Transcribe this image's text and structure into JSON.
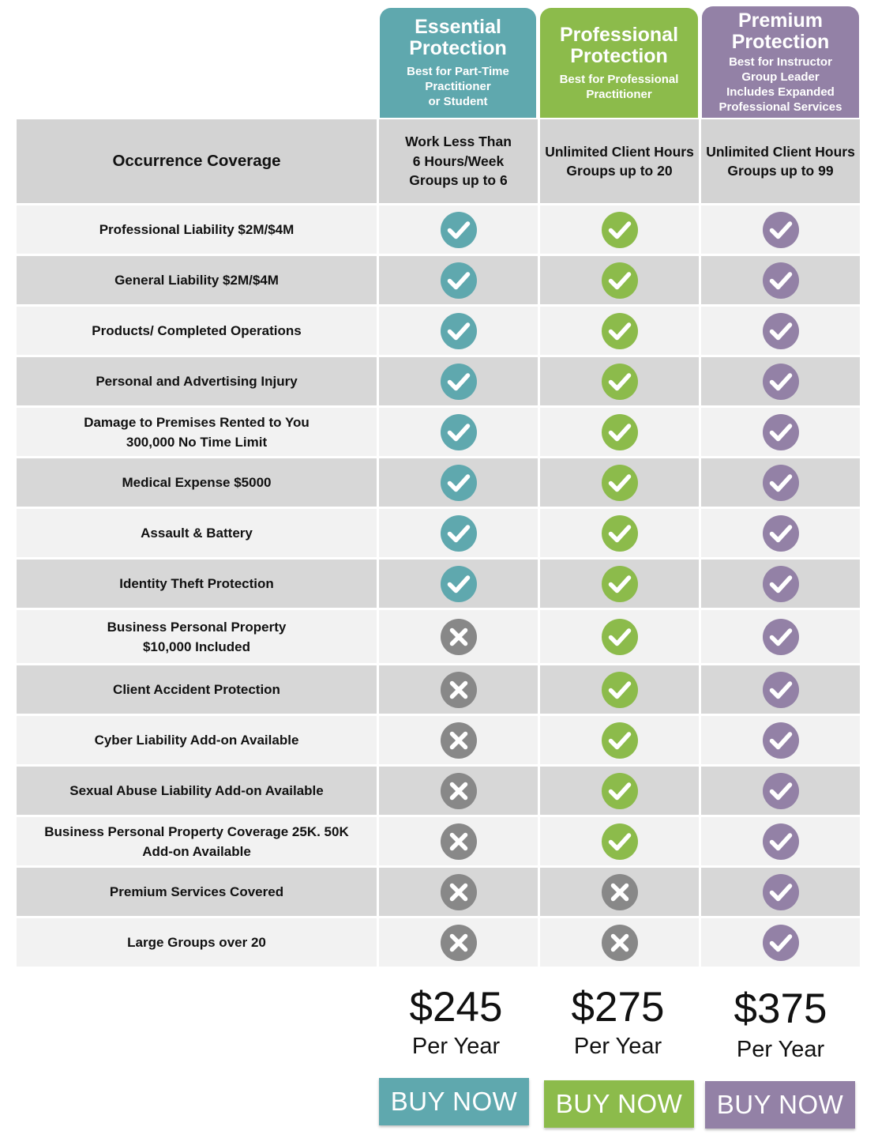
{
  "colors": {
    "essential": "#5fa8ae",
    "professional": "#8cbb4b",
    "premium": "#9381a6",
    "cross": "#888888"
  },
  "plans": [
    {
      "key": "essential",
      "title": [
        "Essential",
        "Protection"
      ],
      "subtitle": [
        "Best for Part-Time",
        "Practitioner",
        "or Student"
      ],
      "header_cell": [
        "Work Less Than",
        "6 Hours/Week",
        "Groups up to 6"
      ],
      "price": "$245",
      "period": "Per Year",
      "button": "BUY NOW"
    },
    {
      "key": "professional",
      "title": [
        "Professional",
        "Protection"
      ],
      "subtitle": [
        "Best for Professional",
        "Practitioner"
      ],
      "header_cell": [
        "Unlimited Client Hours",
        "Groups up to 20"
      ],
      "price": "$275",
      "period": "Per Year",
      "button": "BUY NOW"
    },
    {
      "key": "premium",
      "title": [
        "Premium",
        "Protection"
      ],
      "subtitle": [
        "Best for Instructor",
        "Group Leader",
        "Includes Expanded",
        "Professional  Services"
      ],
      "header_cell": [
        "Unlimited Client Hours",
        "Groups up to 99"
      ],
      "price": "$375",
      "period": "Per Year",
      "button": "BUY NOW"
    }
  ],
  "table": {
    "header_label": "Occurrence Coverage",
    "rows": [
      {
        "label": [
          "Professional Liability $2M/$4M"
        ],
        "included": [
          true,
          true,
          true
        ]
      },
      {
        "label": [
          "General Liability $2M/$4M"
        ],
        "included": [
          true,
          true,
          true
        ]
      },
      {
        "label": [
          "Products/ Completed Operations"
        ],
        "included": [
          true,
          true,
          true
        ]
      },
      {
        "label": [
          "Personal and Advertising Injury"
        ],
        "included": [
          true,
          true,
          true
        ]
      },
      {
        "label": [
          "Damage to Premises Rented to You",
          "300,000 No Time Limit"
        ],
        "included": [
          true,
          true,
          true
        ]
      },
      {
        "label": [
          "Medical Expense $5000"
        ],
        "included": [
          true,
          true,
          true
        ]
      },
      {
        "label": [
          "Assault & Battery"
        ],
        "included": [
          true,
          true,
          true
        ]
      },
      {
        "label": [
          "Identity Theft Protection"
        ],
        "included": [
          true,
          true,
          true
        ]
      },
      {
        "label": [
          "Business Personal Property",
          "$10,000 Included"
        ],
        "included": [
          false,
          true,
          true
        ]
      },
      {
        "label": [
          "Client Accident Protection"
        ],
        "included": [
          false,
          true,
          true
        ]
      },
      {
        "label": [
          "Cyber Liability Add-on Available"
        ],
        "included": [
          false,
          true,
          true
        ]
      },
      {
        "label": [
          "Sexual Abuse Liability Add-on Available"
        ],
        "included": [
          false,
          true,
          true
        ]
      },
      {
        "label": [
          "Business Personal Property Coverage 25K. 50K",
          "Add-on Available"
        ],
        "included": [
          false,
          true,
          true
        ]
      },
      {
        "label": [
          "Premium Services Covered"
        ],
        "included": [
          false,
          false,
          true
        ]
      },
      {
        "label": [
          "Large Groups over 20"
        ],
        "included": [
          false,
          false,
          true
        ]
      }
    ]
  }
}
